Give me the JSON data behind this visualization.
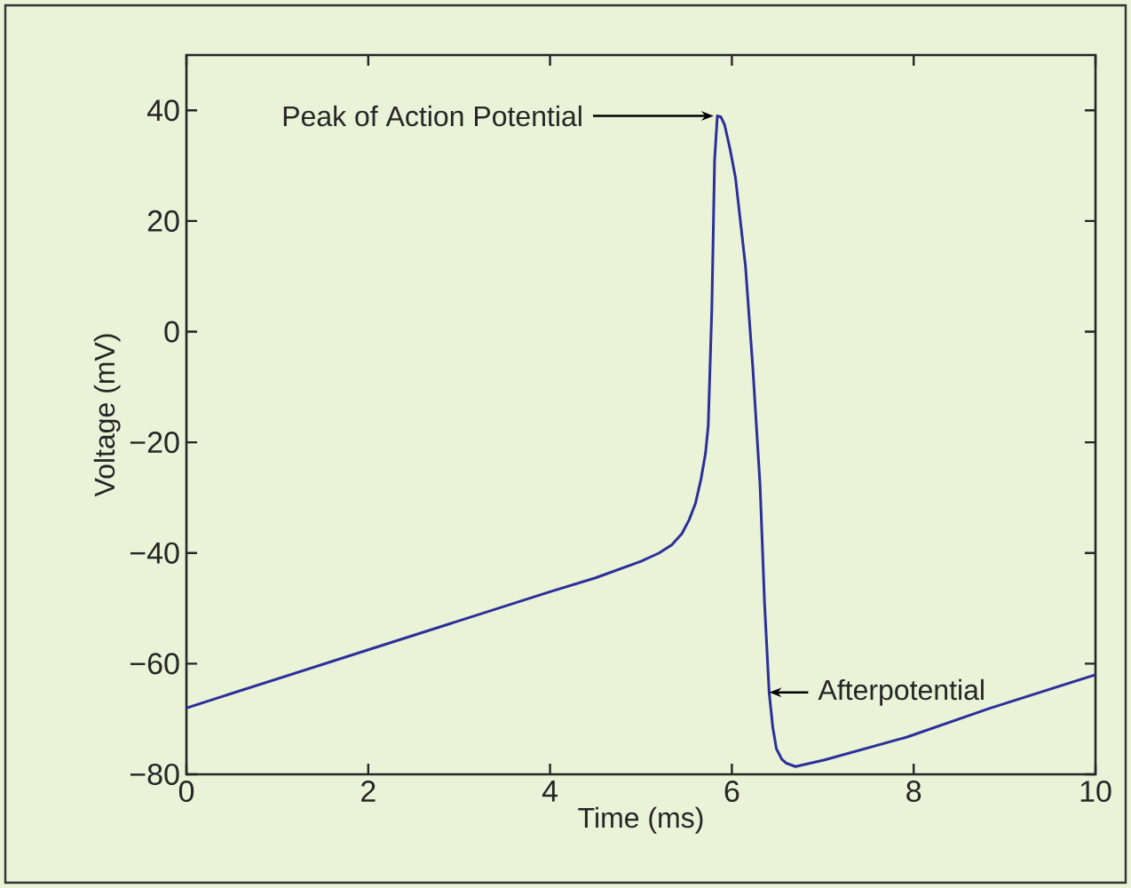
{
  "chart_data": {
    "type": "line",
    "xlabel": "Time (ms)",
    "ylabel": "Voltage (mV)",
    "xlim": [
      0,
      10
    ],
    "ylim": [
      -80,
      50
    ],
    "xticks": [
      0,
      2,
      4,
      6,
      8,
      10
    ],
    "yticks": [
      {
        "value": -80,
        "label": "−80"
      },
      {
        "value": -60,
        "label": "−60"
      },
      {
        "value": -40,
        "label": "−40"
      },
      {
        "value": -20,
        "label": "−20"
      },
      0,
      20,
      40
    ],
    "grid": false,
    "marker": "none",
    "line_style": "solid",
    "series": [
      {
        "color": "#2b2f9a",
        "x": [
          0,
          2,
          4,
          4.5,
          5,
          5.2,
          5.34,
          5.45,
          5.53,
          5.6,
          5.66,
          5.71,
          5.74,
          5.78,
          5.81,
          5.84,
          5.88,
          5.92,
          5.98,
          6.04,
          6.15,
          6.23,
          6.31,
          6.36,
          6.41,
          6.45,
          6.49,
          6.55,
          6.6,
          6.7,
          7.02,
          7.92,
          8.83,
          10
        ],
        "values": [
          -68,
          -57.5,
          -47,
          -44.5,
          -41.5,
          -40,
          -38.5,
          -36.5,
          -34,
          -31,
          -26.7,
          -22,
          -17,
          4.4,
          31,
          39,
          38.8,
          37.4,
          33,
          27.8,
          11.8,
          -6.4,
          -27.7,
          -49.2,
          -65.2,
          -71.5,
          -75.4,
          -77.3,
          -78,
          -78.6,
          -77.4,
          -73.3,
          -68.1,
          -62
        ]
      }
    ],
    "annotations": [
      {
        "text": "Peak of Action Potential",
        "x": 5.84,
        "y": 39
      },
      {
        "text": "Afterpotential",
        "x": 6.41,
        "y": -65.2
      }
    ]
  }
}
